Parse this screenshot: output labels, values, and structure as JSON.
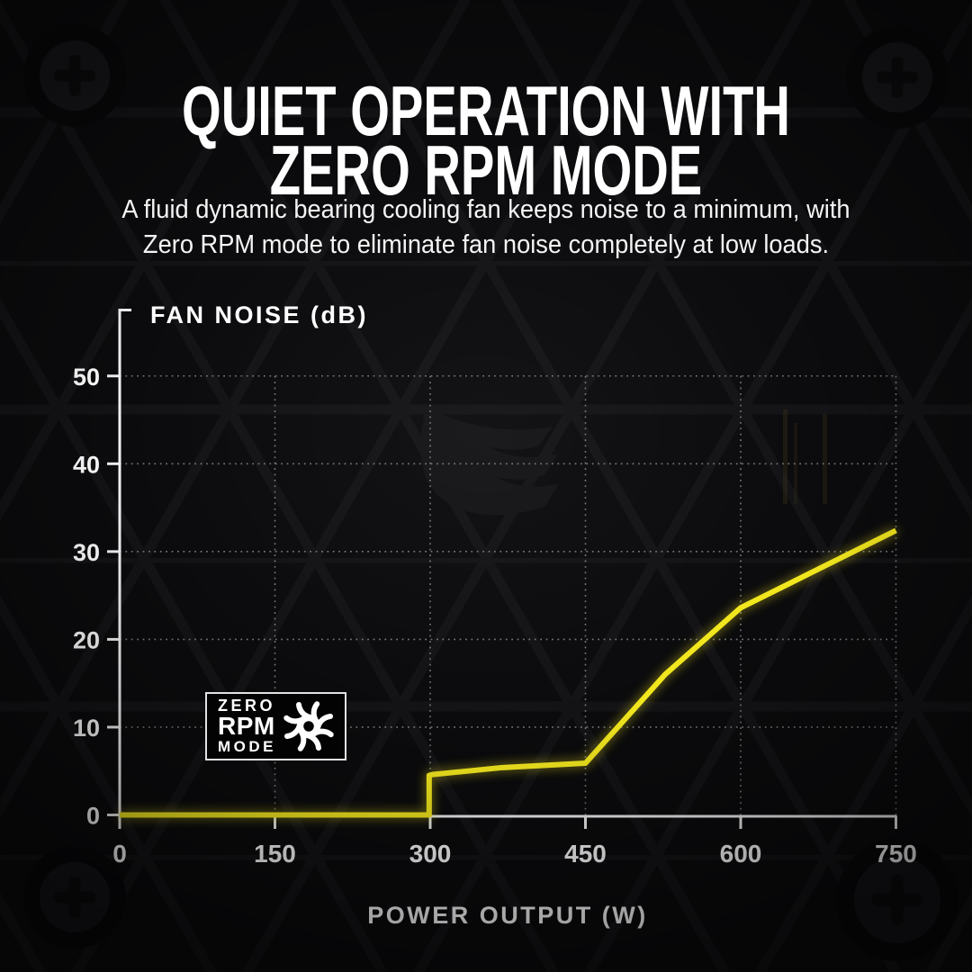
{
  "title": {
    "line1": "QUIET OPERATION WITH",
    "line2": "ZERO RPM MODE"
  },
  "subtitle": {
    "line1": "A fluid dynamic bearing cooling fan keeps noise to a minimum, with",
    "line2": "Zero RPM mode to eliminate fan noise completely at low loads."
  },
  "badge": {
    "line1": "ZERO",
    "line2": "RPM",
    "line3": "MODE",
    "icon": "fan-icon"
  },
  "chart_data": {
    "type": "line",
    "title": "",
    "xlabel": "POWER OUTPUT (W)",
    "ylabel": "FAN NOISE (dB)",
    "x_ticks": [
      0,
      150,
      300,
      450,
      600,
      750
    ],
    "y_ticks": [
      0,
      10,
      20,
      30,
      40,
      50
    ],
    "xlim": [
      0,
      750
    ],
    "ylim": [
      0,
      57
    ],
    "grid": "dotted",
    "legend": "none",
    "series": [
      {
        "name": "fan-noise-curve",
        "color": "#f2e71e",
        "points": [
          [
            0,
            0
          ],
          [
            299,
            0
          ],
          [
            299,
            4.5
          ],
          [
            302,
            4.6
          ],
          [
            370,
            5.4
          ],
          [
            450,
            5.9
          ],
          [
            527,
            16
          ],
          [
            600,
            23.6
          ],
          [
            750,
            32.4
          ]
        ]
      }
    ],
    "annotations": [
      "ZERO RPM MODE region below 300 W"
    ]
  },
  "colors": {
    "background": "#0b0b0d",
    "accent_yellow": "#f2e71e",
    "text": "#ffffff",
    "axis": "#f2f2f2",
    "grid_dots": "#8f8f8f"
  },
  "icons": {
    "fan": "fan-icon",
    "screws": "phillips-screw-icon",
    "watermark": "corsair-sails-logo"
  }
}
